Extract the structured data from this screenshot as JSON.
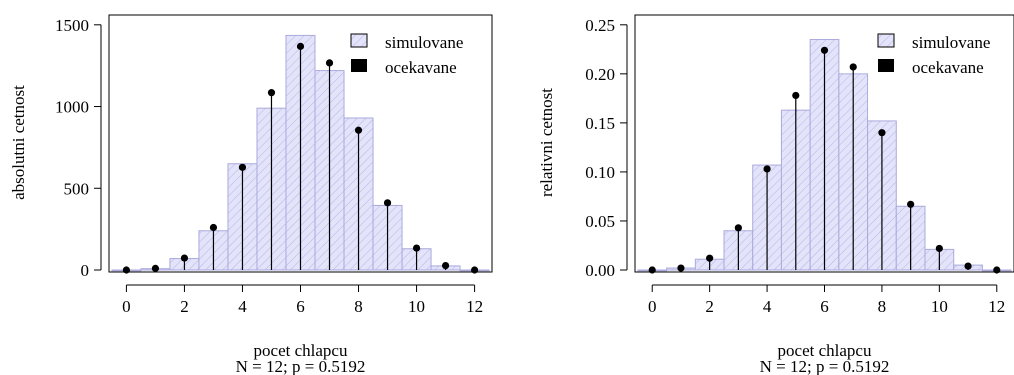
{
  "chart_data": [
    {
      "type": "bar",
      "xlabel": "pocet chlapcu",
      "subtitle": "N = 12; p = 0.5192",
      "ylabel": "absolutni cetnost",
      "x": [
        0,
        1,
        2,
        3,
        4,
        5,
        6,
        7,
        8,
        9,
        10,
        11,
        12
      ],
      "xticks": [
        "0",
        "2",
        "4",
        "6",
        "8",
        "10",
        "12"
      ],
      "yticks": [
        "0",
        "500",
        "1000",
        "1500"
      ],
      "ylim": [
        0,
        1560
      ],
      "xlim": [
        -0.6,
        12.6
      ],
      "series": [
        {
          "name": "simulovane",
          "kind": "bar",
          "values": [
            0,
            8,
            70,
            240,
            650,
            990,
            1435,
            1220,
            930,
            395,
            130,
            25,
            0
          ]
        },
        {
          "name": "ocekavane",
          "kind": "stem",
          "values": [
            0,
            10,
            73,
            260,
            628,
            1085,
            1368,
            1267,
            855,
            411,
            134,
            27,
            0
          ]
        }
      ],
      "legend_position": "top-right",
      "colors": {
        "bar_fill": "#e3e3fa",
        "bar_edge": "#aaaadd",
        "hatch": "#b5b5ea",
        "stem": "#000000"
      }
    },
    {
      "type": "bar",
      "xlabel": "pocet chlapcu",
      "subtitle": "N = 12; p = 0.5192",
      "ylabel": "relativni cetnost",
      "x": [
        0,
        1,
        2,
        3,
        4,
        5,
        6,
        7,
        8,
        9,
        10,
        11,
        12
      ],
      "xticks": [
        "0",
        "2",
        "4",
        "6",
        "8",
        "10",
        "12"
      ],
      "yticks": [
        "0.00",
        "0.05",
        "0.10",
        "0.15",
        "0.20",
        "0.25"
      ],
      "ylim": [
        0,
        0.26
      ],
      "xlim": [
        -0.6,
        12.6
      ],
      "series": [
        {
          "name": "simulovane",
          "kind": "bar",
          "values": [
            0,
            0.002,
            0.011,
            0.04,
            0.107,
            0.163,
            0.235,
            0.2,
            0.152,
            0.065,
            0.021,
            0.005,
            0
          ]
        },
        {
          "name": "ocekavane",
          "kind": "stem",
          "values": [
            0,
            0.002,
            0.012,
            0.043,
            0.103,
            0.178,
            0.224,
            0.207,
            0.14,
            0.067,
            0.022,
            0.004,
            0
          ]
        }
      ],
      "legend_position": "top-right",
      "colors": {
        "bar_fill": "#e3e3fa",
        "bar_edge": "#aaaadd",
        "hatch": "#b5b5ea",
        "stem": "#000000"
      }
    }
  ]
}
